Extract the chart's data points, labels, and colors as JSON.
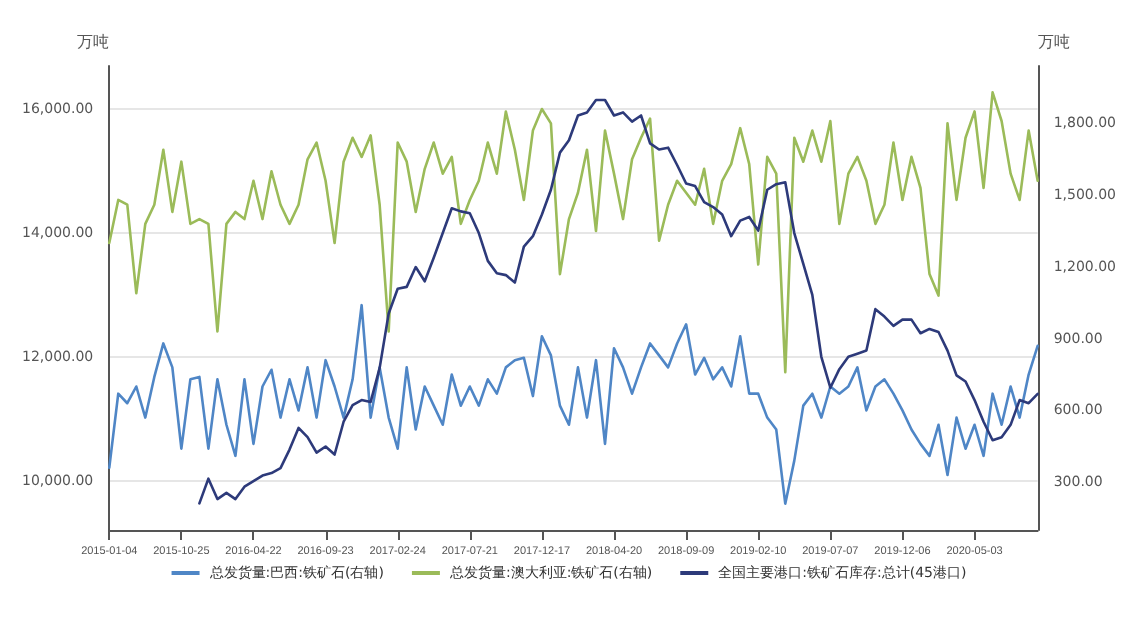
{
  "chart_data": {
    "type": "line",
    "categories": [
      "2015-01-04",
      null,
      null,
      null,
      null,
      null,
      null,
      null,
      "2015-10-25",
      null,
      null,
      null,
      null,
      null,
      null,
      null,
      "2016-04-22",
      null,
      null,
      null,
      null,
      null,
      null,
      null,
      "2016-09-23",
      null,
      null,
      null,
      null,
      null,
      null,
      null,
      "2017-02-24",
      null,
      null,
      null,
      null,
      null,
      null,
      null,
      "2017-07-21",
      null,
      null,
      null,
      null,
      null,
      null,
      null,
      "2017-12-17",
      null,
      null,
      null,
      null,
      null,
      null,
      null,
      "2018-04-20",
      null,
      null,
      null,
      null,
      null,
      null,
      null,
      "2018-09-09",
      null,
      null,
      null,
      null,
      null,
      null,
      null,
      "2019-02-10",
      null,
      null,
      null,
      null,
      null,
      null,
      null,
      "2019-07-07",
      null,
      null,
      null,
      null,
      null,
      null,
      null,
      "2019-12-06",
      null,
      null,
      null,
      null,
      null,
      null,
      null,
      "2020-05-03",
      null,
      null,
      null,
      null,
      null,
      null,
      null
    ],
    "series": [
      {
        "name": "总发货量:巴西:铁矿石(右轴)",
        "color": "#4f86c6",
        "axis": "y2",
        "values": [
          360,
          670,
          630,
          700,
          570,
          740,
          880,
          780,
          440,
          730,
          740,
          440,
          730,
          540,
          410,
          730,
          460,
          700,
          770,
          570,
          730,
          600,
          780,
          570,
          810,
          700,
          570,
          730,
          1040,
          570,
          780,
          570,
          440,
          780,
          520,
          700,
          620,
          540,
          750,
          620,
          700,
          620,
          730,
          670,
          780,
          810,
          820,
          660,
          910,
          830,
          620,
          540,
          780,
          570,
          810,
          460,
          860,
          780,
          670,
          780,
          880,
          830,
          780,
          880,
          960,
          750,
          820,
          730,
          780,
          700,
          910,
          670,
          670,
          570,
          520,
          210,
          390,
          620,
          670,
          570,
          700,
          670,
          700,
          780,
          600,
          700,
          730,
          670,
          600,
          520,
          460,
          410,
          540,
          330,
          570,
          440,
          540,
          410,
          670,
          540,
          700,
          570,
          750,
          870
        ]
      },
      {
        "name": "总发货量:澳大利亚:铁矿石(右轴)",
        "color": "#9bbb59",
        "axis": "y2",
        "values": [
          1300,
          1480,
          1460,
          1090,
          1380,
          1460,
          1690,
          1430,
          1640,
          1380,
          1400,
          1380,
          930,
          1380,
          1430,
          1400,
          1560,
          1400,
          1600,
          1460,
          1380,
          1460,
          1650,
          1720,
          1560,
          1300,
          1640,
          1740,
          1660,
          1750,
          1460,
          930,
          1720,
          1640,
          1430,
          1610,
          1720,
          1590,
          1660,
          1380,
          1480,
          1560,
          1720,
          1590,
          1850,
          1690,
          1480,
          1770,
          1860,
          1800,
          1170,
          1400,
          1510,
          1690,
          1350,
          1770,
          1590,
          1400,
          1650,
          1740,
          1820,
          1310,
          1460,
          1560,
          1510,
          1460,
          1610,
          1380,
          1560,
          1630,
          1780,
          1630,
          1210,
          1660,
          1590,
          760,
          1740,
          1640,
          1770,
          1640,
          1810,
          1380,
          1590,
          1660,
          1560,
          1380,
          1460,
          1720,
          1480,
          1660,
          1530,
          1170,
          1080,
          1800,
          1480,
          1740,
          1850,
          1530,
          1930,
          1810,
          1590,
          1480,
          1770,
          1560
        ]
      },
      {
        "name": "全国主要港口:铁矿石库存:总计(45港口)",
        "color": "#2d3a7a",
        "values": [
          null,
          null,
          null,
          null,
          null,
          null,
          null,
          null,
          null,
          null,
          9630,
          10030,
          9700,
          9800,
          9700,
          9900,
          9990,
          10080,
          10120,
          10200,
          10500,
          10850,
          10700,
          10450,
          10550,
          10420,
          10950,
          11220,
          11300,
          11270,
          11820,
          12700,
          13100,
          13130,
          13450,
          13220,
          13600,
          14000,
          14400,
          14350,
          14320,
          14000,
          13550,
          13350,
          13320,
          13200,
          13780,
          13950,
          14300,
          14700,
          15300,
          15500,
          15900,
          15950,
          16150,
          16150,
          15900,
          15950,
          15800,
          15900,
          15450,
          15350,
          15380,
          15100,
          14800,
          14760,
          14500,
          14420,
          14300,
          13950,
          14200,
          14260,
          14040,
          14700,
          14790,
          14820,
          14000,
          13500,
          13000,
          12000,
          11500,
          11800,
          12000,
          12050,
          12100,
          12770,
          12650,
          12500,
          12600,
          12600,
          12380,
          12450,
          12400,
          12100,
          11700,
          11600,
          11300,
          10950,
          10650,
          10700,
          10900,
          11300,
          11250,
          11400
        ]
      }
    ],
    "ylabel": "万吨",
    "y2label": "万吨",
    "ylim": [
      9200,
      16700
    ],
    "yticks": [
      {
        "value": 10000,
        "label": "10,000.00"
      },
      {
        "value": 12000,
        "label": "12,000.00"
      },
      {
        "value": 14000,
        "label": "14,000.00"
      },
      {
        "value": 16000,
        "label": "16,000.00"
      }
    ],
    "y2lim": [
      100,
      2040
    ],
    "y2ticks": [
      {
        "value": 300,
        "label": "300.00"
      },
      {
        "value": 600,
        "label": "600.00"
      },
      {
        "value": 900,
        "label": "900.00"
      },
      {
        "value": 1200,
        "label": "1,200.00"
      },
      {
        "value": 1500,
        "label": "1,500.00"
      },
      {
        "value": 1800,
        "label": "1,800.00"
      }
    ],
    "grid": "y",
    "legend": "bottom",
    "marker": "none",
    "line_style": "solid"
  }
}
